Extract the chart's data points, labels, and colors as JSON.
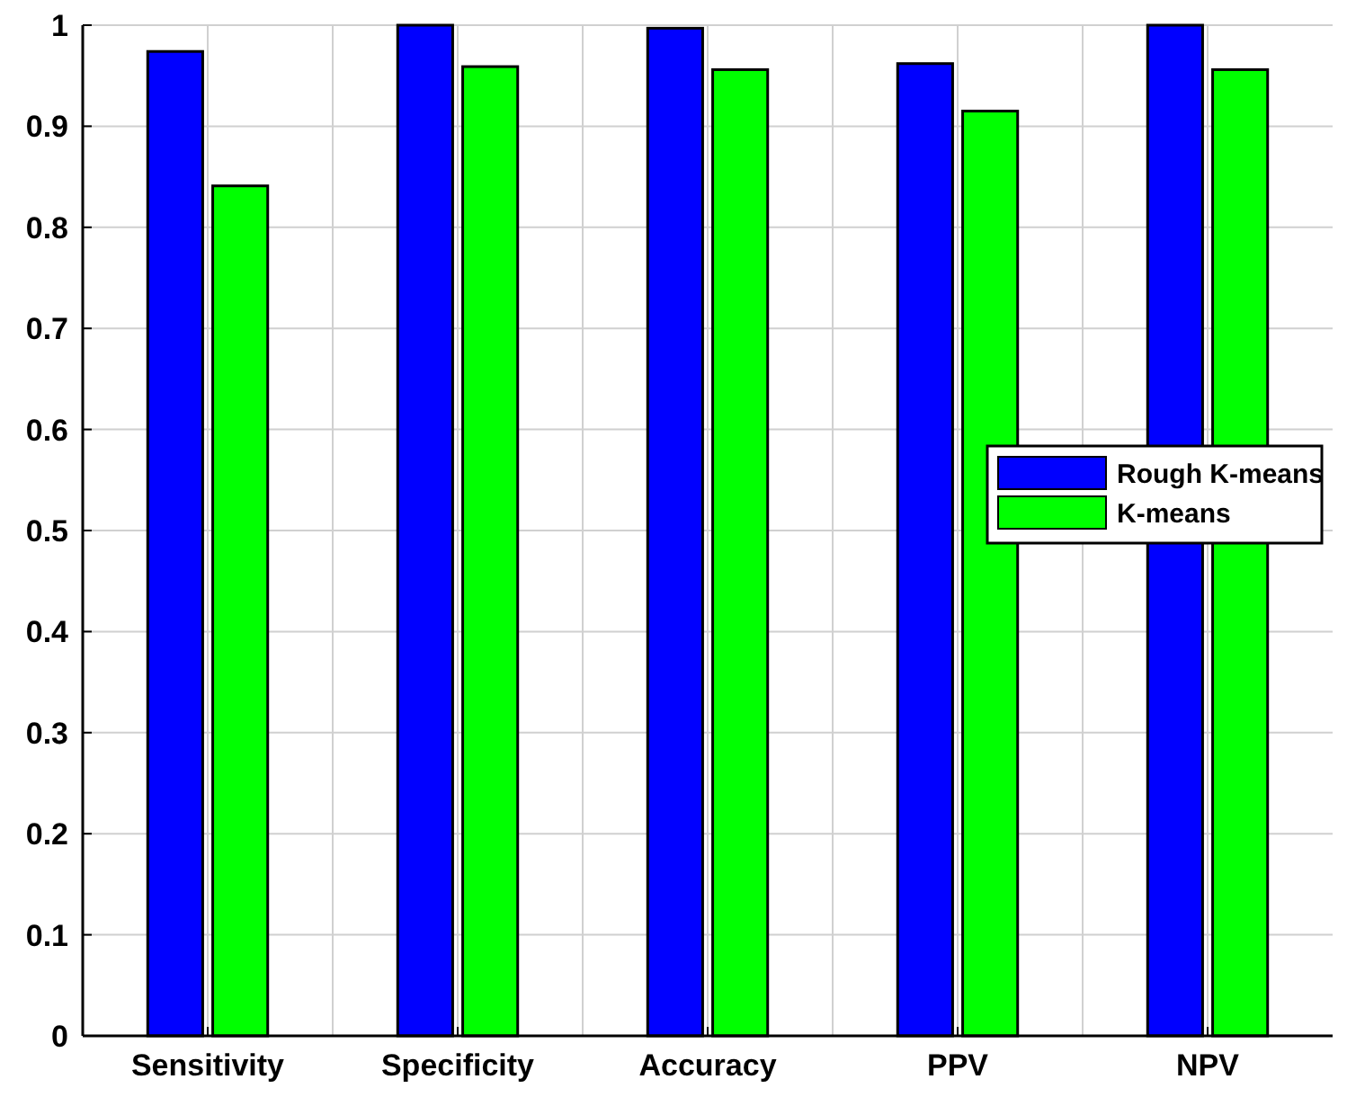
{
  "chart_data": {
    "type": "bar",
    "categories": [
      "Sensitivity",
      "Specificity",
      "Accuracy",
      "PPV",
      "NPV"
    ],
    "series": [
      {
        "name": "Rough K-means",
        "color": "#0000ff",
        "values": [
          0.974,
          1.0,
          0.997,
          0.962,
          1.0
        ]
      },
      {
        "name": "K-means",
        "color": "#00ff00",
        "values": [
          0.841,
          0.959,
          0.956,
          0.915,
          0.956
        ]
      }
    ],
    "ylim": [
      0,
      1
    ],
    "yticks": [
      0,
      0.1,
      0.2,
      0.3,
      0.4,
      0.5,
      0.6,
      0.7,
      0.8,
      0.9,
      1
    ],
    "grid": true,
    "legend": "center right"
  }
}
